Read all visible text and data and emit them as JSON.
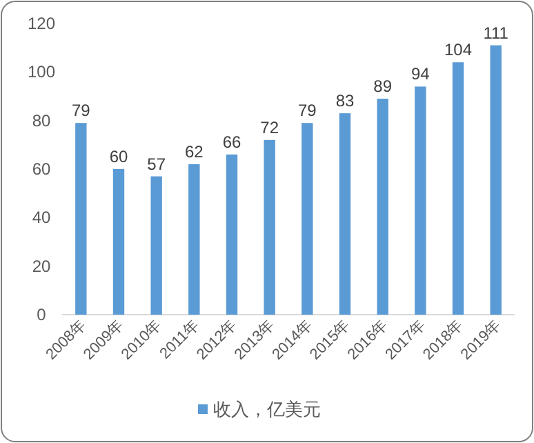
{
  "chart_data": {
    "type": "bar",
    "categories": [
      "2008年",
      "2009年",
      "2010年",
      "2011年",
      "2012年",
      "2013年",
      "2014年",
      "2015年",
      "2016年",
      "2017年",
      "2018年",
      "2019年"
    ],
    "series": [
      {
        "name": "收入，亿美元",
        "color": "#5b9bd5",
        "values": [
          79,
          60,
          57,
          62,
          66,
          72,
          79,
          83,
          89,
          94,
          104,
          111
        ]
      }
    ],
    "ylim": [
      0,
      120
    ],
    "yticks": [
      0,
      20,
      40,
      60,
      80,
      100,
      120
    ],
    "data_labels": true,
    "legend": "bottom"
  }
}
